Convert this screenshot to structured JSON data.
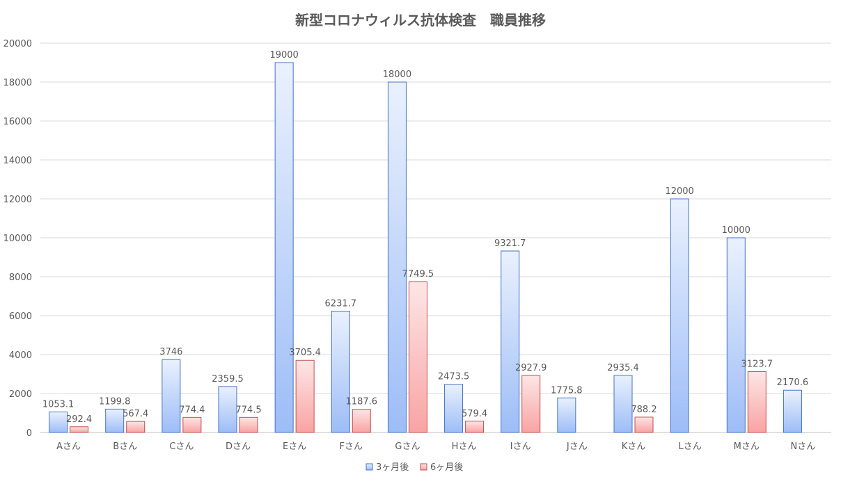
{
  "chart_data": {
    "type": "bar",
    "title": "新型コロナウィルス抗体検査　職員推移",
    "xlabel": "",
    "ylabel": "",
    "ylim": [
      0,
      20000
    ],
    "yticks": [
      0,
      2000,
      4000,
      6000,
      8000,
      10000,
      12000,
      14000,
      16000,
      18000,
      20000
    ],
    "grid": true,
    "legend_position": "bottom",
    "categories": [
      "Aさん",
      "Bさん",
      "Cさん",
      "Dさん",
      "Eさん",
      "Fさん",
      "Gさん",
      "Hさん",
      "Iさん",
      "Jさん",
      "Kさん",
      "Lさん",
      "Mさん",
      "Nさん"
    ],
    "series": [
      {
        "name": "3ヶ月後",
        "color": "#4472c4",
        "fill_top": "#eaf1fd",
        "fill_bottom": "#9dbdf7",
        "values": [
          1053.1,
          1199.8,
          3746,
          2359.5,
          19000,
          6231.7,
          18000,
          2473.5,
          9321.7,
          1775.8,
          2935.4,
          12000,
          10000,
          2170.6
        ],
        "labels": [
          "1053.1",
          "1199.8",
          "3746",
          "2359.5",
          "19000",
          "6231.7",
          "18000",
          "2473.5",
          "9321.7",
          "1775.8",
          "2935.4",
          "12000",
          "10000",
          "2170.6"
        ]
      },
      {
        "name": "6ヶ月後",
        "color": "#c0504d",
        "fill_top": "#fde6e6",
        "fill_bottom": "#f9a3a3",
        "values": [
          292.4,
          567.4,
          774.4,
          774.5,
          3705.4,
          1187.6,
          7749.5,
          579.4,
          2927.9,
          null,
          788.2,
          null,
          3123.7,
          null
        ],
        "labels": [
          "292.4",
          "567.4",
          "774.4",
          "774.5",
          "3705.4",
          "1187.6",
          "7749.5",
          "579.4",
          "2927.9",
          "",
          "788.2",
          "",
          "3123.7",
          ""
        ]
      }
    ]
  }
}
